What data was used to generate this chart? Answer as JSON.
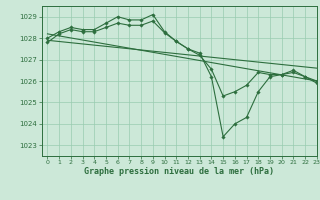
{
  "title": "Graphe pression niveau de la mer (hPa)",
  "bg_color": "#cce8d8",
  "grid_color": "#99ccb0",
  "line_color": "#2d6e3e",
  "xlim": [
    -0.5,
    23
  ],
  "ylim": [
    1022.5,
    1029.5
  ],
  "yticks": [
    1023,
    1024,
    1025,
    1026,
    1027,
    1028,
    1029
  ],
  "xticks": [
    0,
    1,
    2,
    3,
    4,
    5,
    6,
    7,
    8,
    9,
    10,
    11,
    12,
    13,
    14,
    15,
    16,
    17,
    18,
    19,
    20,
    21,
    22,
    23
  ],
  "lines": [
    {
      "x": [
        0,
        1,
        2,
        3,
        4,
        5,
        6,
        7,
        8,
        9,
        10,
        11,
        12,
        13,
        14,
        15,
        16,
        17,
        18,
        19,
        20,
        21,
        22,
        23
      ],
      "y": [
        1028.0,
        1028.3,
        1028.5,
        1028.4,
        1028.4,
        1028.7,
        1029.0,
        1028.85,
        1028.85,
        1029.1,
        1028.3,
        1027.85,
        1027.5,
        1027.3,
        1026.2,
        1023.4,
        1024.0,
        1024.3,
        1025.5,
        1026.2,
        1026.3,
        1026.5,
        1026.2,
        1026.0
      ],
      "marker": true
    },
    {
      "x": [
        0,
        1,
        2,
        3,
        4,
        5,
        6,
        7,
        8,
        9,
        10,
        11,
        12,
        13,
        14,
        15,
        16,
        17,
        18,
        19,
        20,
        21,
        22,
        23
      ],
      "y": [
        1027.8,
        1028.2,
        1028.4,
        1028.3,
        1028.3,
        1028.5,
        1028.7,
        1028.6,
        1028.6,
        1028.8,
        1028.25,
        1027.85,
        1027.5,
        1027.2,
        1026.55,
        1025.3,
        1025.5,
        1025.8,
        1026.4,
        1026.3,
        1026.3,
        1026.4,
        1026.2,
        1025.9
      ],
      "marker": true
    },
    {
      "x": [
        0,
        23
      ],
      "y": [
        1028.2,
        1026.0
      ],
      "marker": false
    },
    {
      "x": [
        0,
        23
      ],
      "y": [
        1027.9,
        1026.6
      ],
      "marker": false
    }
  ]
}
